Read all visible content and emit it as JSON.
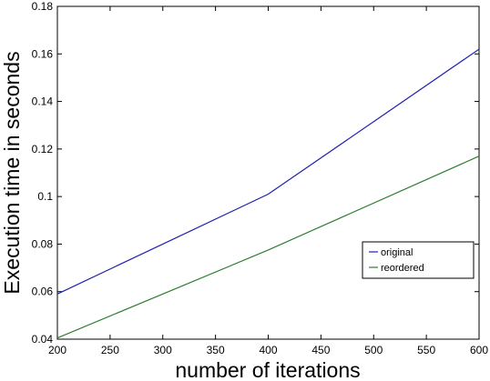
{
  "chart_data": {
    "type": "line",
    "xlabel": "number of iterations",
    "ylabel": "Execution time in seconds",
    "xlim": [
      200,
      600
    ],
    "ylim": [
      0.04,
      0.18
    ],
    "xticks": [
      200,
      250,
      300,
      350,
      400,
      450,
      500,
      550,
      600
    ],
    "yticks": [
      0.04,
      0.06,
      0.08,
      0.1,
      0.12,
      0.14,
      0.16,
      0.18
    ],
    "xtick_labels": [
      "200",
      "250",
      "300",
      "350",
      "400",
      "450",
      "500",
      "550",
      "600"
    ],
    "ytick_labels": [
      "0.04",
      "0.06",
      "0.08",
      "0.1",
      "0.12",
      "0.14",
      "0.16",
      "0.18"
    ],
    "grid": false,
    "legend_position": "lower-right",
    "series": [
      {
        "name": "original",
        "color": "#1f1fb0",
        "x": [
          200,
          400,
          600
        ],
        "y": [
          0.059,
          0.101,
          0.162
        ]
      },
      {
        "name": "reordered",
        "color": "#2e7d32",
        "x": [
          200,
          400,
          600
        ],
        "y": [
          0.0405,
          0.0775,
          0.117
        ]
      }
    ]
  }
}
